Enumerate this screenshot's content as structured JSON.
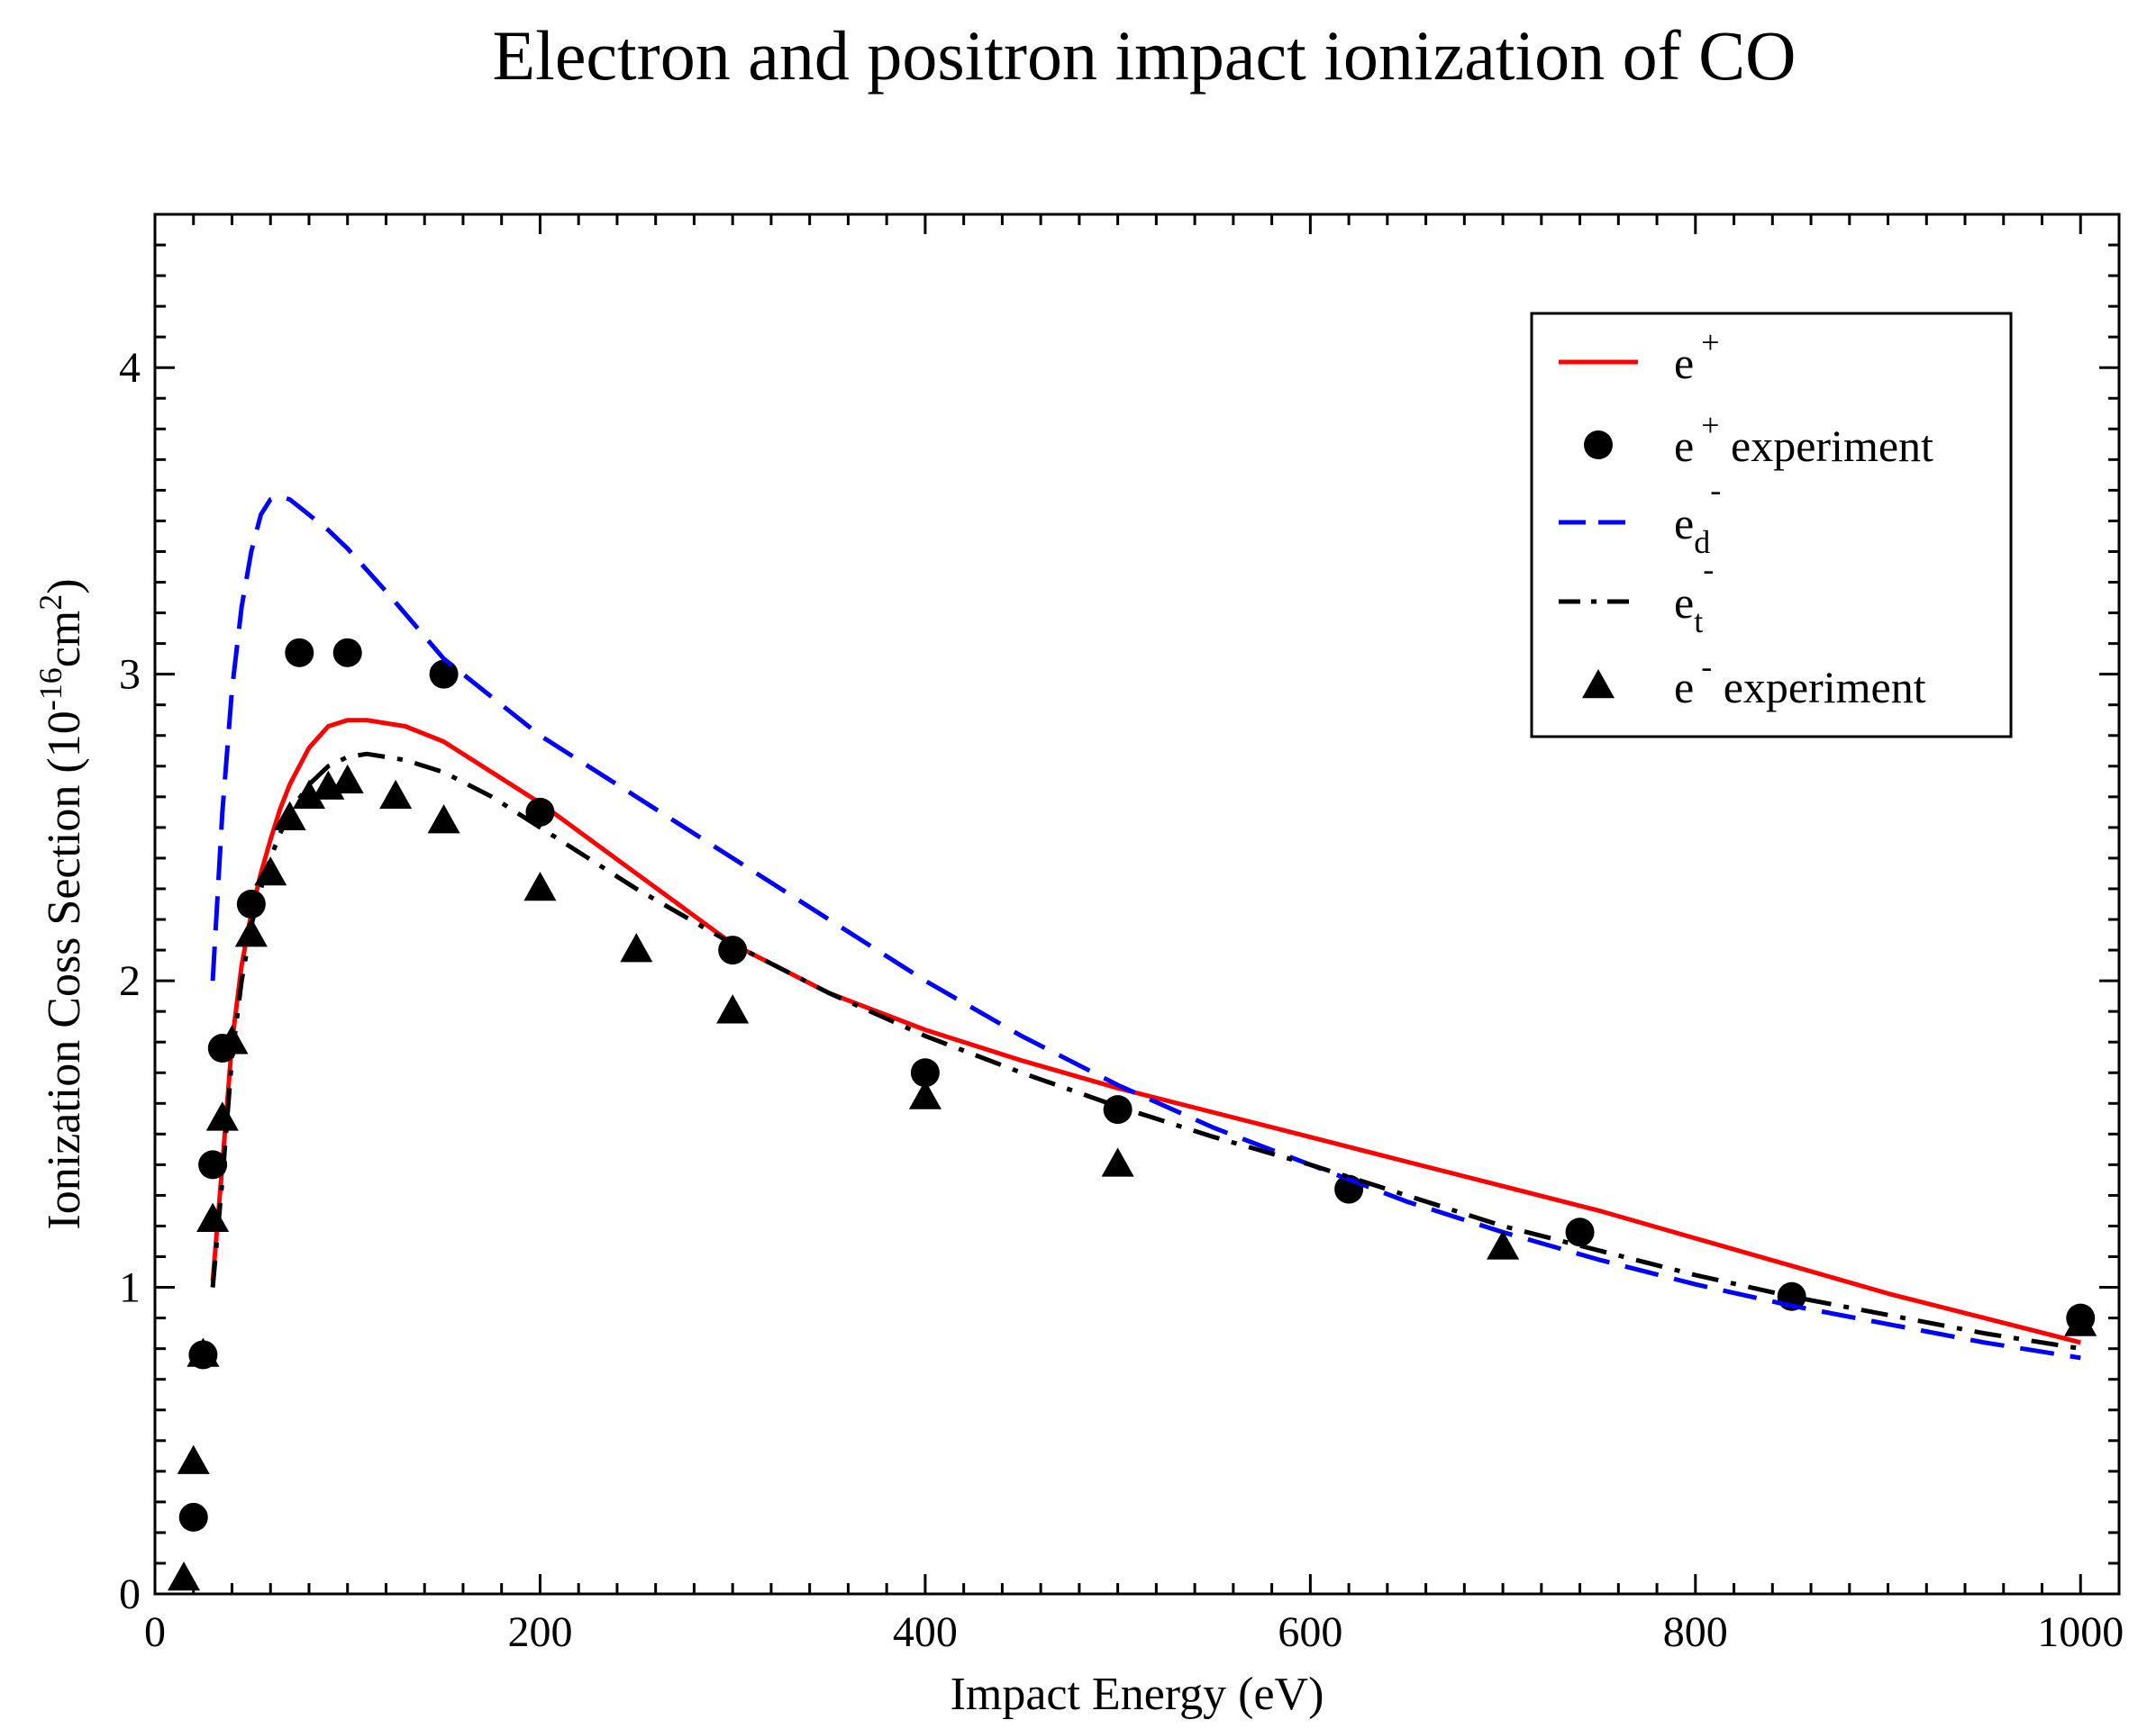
{
  "chart_data": {
    "type": "line",
    "title": "Electron and positron impact ionization of CO",
    "xlabel": "Impact Energy (eV)",
    "ylabel": {
      "pre": "Ionization Coss Section (10",
      "exp1": "-16",
      "mid": "cm",
      "exp2": "2",
      "post": ")"
    },
    "xlim": [
      0,
      1020
    ],
    "ylim": [
      0,
      4.5
    ],
    "x_major_ticks": [
      0,
      200,
      400,
      600,
      800,
      1000
    ],
    "x_tick_labels": [
      "0",
      "200",
      "400",
      "600",
      "800",
      "1000"
    ],
    "y_major_ticks": [
      0,
      1,
      2,
      3,
      4
    ],
    "y_tick_labels": [
      "0",
      "1",
      "2",
      "3",
      "4"
    ],
    "grid": false,
    "legend_position": "top-right",
    "series": [
      {
        "name": "e+",
        "legend": {
          "base": "e",
          "sup": "+",
          "sub": "",
          "suffix": ""
        },
        "kind": "line",
        "style": "solid",
        "color": "#ff0000",
        "x": [
          30,
          35,
          40,
          45,
          50,
          55,
          60,
          65,
          70,
          80,
          90,
          100,
          110,
          130,
          150,
          175,
          200,
          250,
          300,
          350,
          400,
          450,
          500,
          550,
          600,
          650,
          700,
          750,
          800,
          850,
          900,
          950,
          1000
        ],
        "y": [
          1.02,
          1.4,
          1.8,
          2.05,
          2.22,
          2.35,
          2.46,
          2.56,
          2.64,
          2.76,
          2.83,
          2.85,
          2.85,
          2.83,
          2.78,
          2.68,
          2.58,
          2.35,
          2.12,
          1.96,
          1.84,
          1.74,
          1.65,
          1.57,
          1.49,
          1.41,
          1.33,
          1.25,
          1.16,
          1.07,
          0.98,
          0.9,
          0.82
        ]
      },
      {
        "name": "e+ experiment",
        "legend": {
          "base": "e",
          "sup": "+",
          "sub": "",
          "suffix": " experiment"
        },
        "kind": "scatter",
        "marker": "circle",
        "color": "#000000",
        "x": [
          20,
          25,
          30,
          35,
          50,
          75,
          100,
          150,
          200,
          300,
          400,
          500,
          620,
          740,
          850,
          1000
        ],
        "y": [
          0.25,
          0.78,
          1.4,
          1.78,
          2.25,
          3.07,
          3.07,
          3.0,
          2.55,
          2.1,
          1.7,
          1.58,
          1.32,
          1.18,
          0.97,
          0.9
        ]
      },
      {
        "name": "e-d",
        "legend": {
          "base": "e",
          "sup": "-",
          "sub": "d",
          "suffix": ""
        },
        "kind": "line",
        "style": "dashed",
        "color": "#0000ff",
        "x": [
          30,
          35,
          40,
          45,
          50,
          55,
          60,
          65,
          70,
          80,
          90,
          100,
          120,
          150,
          200,
          250,
          300,
          350,
          400,
          450,
          500,
          550,
          600,
          650,
          700,
          750,
          800,
          850,
          900,
          950,
          1000
        ],
        "y": [
          2.0,
          2.55,
          2.95,
          3.22,
          3.4,
          3.52,
          3.57,
          3.58,
          3.57,
          3.52,
          3.47,
          3.41,
          3.27,
          3.05,
          2.8,
          2.6,
          2.4,
          2.2,
          2.0,
          1.82,
          1.66,
          1.52,
          1.4,
          1.28,
          1.18,
          1.09,
          1.01,
          0.94,
          0.88,
          0.82,
          0.77
        ]
      },
      {
        "name": "e-t",
        "legend": {
          "base": "e",
          "sup": "-",
          "sub": "t",
          "suffix": ""
        },
        "kind": "line",
        "style": "dashdot",
        "color": "#000000",
        "x": [
          30,
          35,
          40,
          45,
          50,
          55,
          60,
          65,
          70,
          80,
          90,
          100,
          110,
          130,
          150,
          175,
          200,
          250,
          300,
          350,
          400,
          450,
          500,
          550,
          600,
          650,
          700,
          750,
          800,
          850,
          900,
          950,
          1000
        ],
        "y": [
          1.0,
          1.35,
          1.75,
          2.0,
          2.18,
          2.3,
          2.4,
          2.48,
          2.55,
          2.64,
          2.7,
          2.73,
          2.74,
          2.72,
          2.68,
          2.6,
          2.5,
          2.3,
          2.12,
          1.96,
          1.82,
          1.7,
          1.59,
          1.49,
          1.4,
          1.3,
          1.2,
          1.12,
          1.04,
          0.97,
          0.91,
          0.85,
          0.8
        ]
      },
      {
        "name": "e- experiment",
        "legend": {
          "base": "e",
          "sup": "-",
          "sub": "",
          "suffix": " experiment"
        },
        "kind": "scatter",
        "marker": "triangle",
        "color": "#000000",
        "x": [
          15,
          20,
          25,
          30,
          35,
          40,
          50,
          60,
          70,
          80,
          90,
          100,
          125,
          150,
          200,
          250,
          300,
          400,
          500,
          700,
          1000
        ],
        "y": [
          0.05,
          0.43,
          0.78,
          1.22,
          1.55,
          1.8,
          2.15,
          2.35,
          2.53,
          2.6,
          2.63,
          2.65,
          2.6,
          2.52,
          2.3,
          2.1,
          1.9,
          1.62,
          1.4,
          1.13,
          0.88
        ]
      }
    ]
  }
}
